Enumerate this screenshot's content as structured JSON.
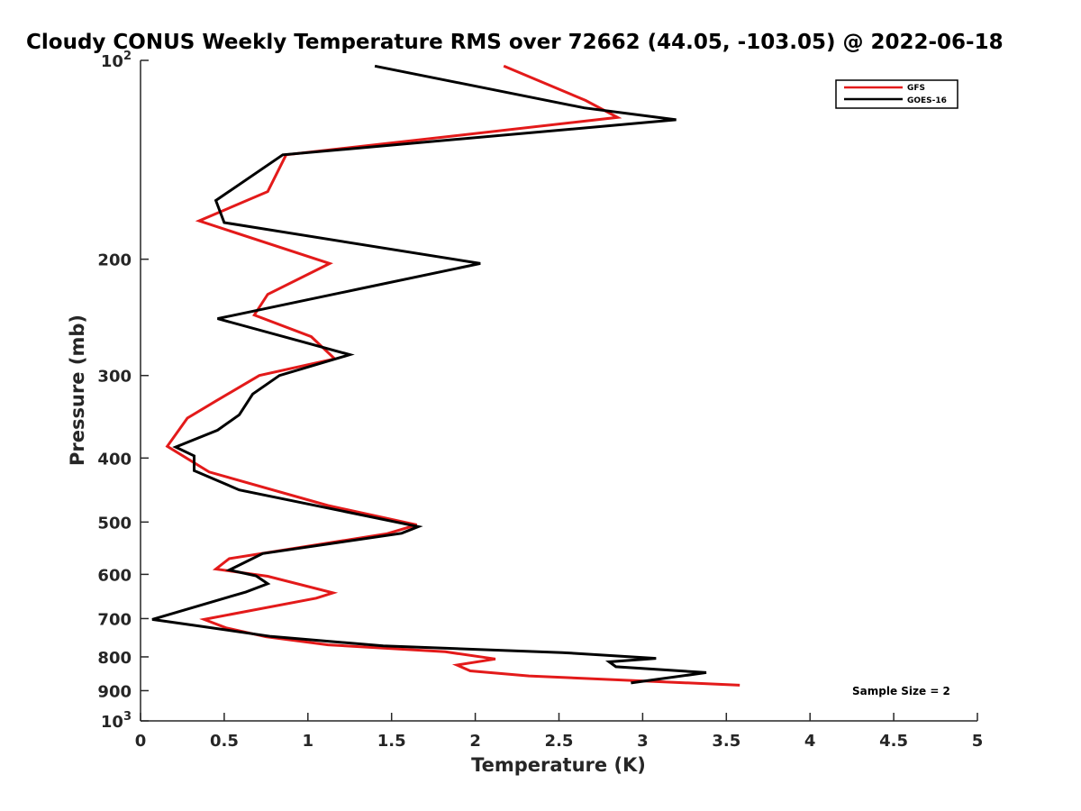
{
  "chart_data": {
    "type": "line",
    "title": "Cloudy CONUS Weekly Temperature RMS over 72662 (44.05, -103.05) @ 2022-06-18",
    "xlabel": "Temperature (K)",
    "ylabel": "Pressure (mb)",
    "xlim": [
      0,
      5
    ],
    "ylim": [
      100,
      1000
    ],
    "yscale": "log",
    "y_reversed": true,
    "grid": false,
    "legend_position": "top-right",
    "x_ticks": [
      "0",
      "0.5",
      "1",
      "1.5",
      "2",
      "2.5",
      "3",
      "3.5",
      "4",
      "4.5",
      "5"
    ],
    "x_tick_values": [
      0,
      0.5,
      1,
      1.5,
      2,
      2.5,
      3,
      3.5,
      4,
      4.5,
      5
    ],
    "y_ticks": [
      {
        "value": 100,
        "base": "10",
        "exp": "2"
      },
      {
        "value": 200,
        "label": "200"
      },
      {
        "value": 300,
        "label": "300"
      },
      {
        "value": 400,
        "label": "400"
      },
      {
        "value": 500,
        "label": "500"
      },
      {
        "value": 600,
        "label": "600"
      },
      {
        "value": 700,
        "label": "700"
      },
      {
        "value": 800,
        "label": "800"
      },
      {
        "value": 900,
        "label": "900"
      },
      {
        "value": 1000,
        "base": "10",
        "exp": "3"
      }
    ],
    "annotation": "Sample Size = 2",
    "series": [
      {
        "name": "GFS",
        "color": "#e31a1a",
        "x": [
          2.17,
          2.66,
          2.85,
          0.87,
          0.76,
          0.35,
          1.13,
          0.76,
          0.68,
          1.02,
          1.16,
          0.71,
          0.45,
          0.28,
          0.16,
          0.41,
          1.12,
          1.65,
          1.47,
          0.53,
          0.45,
          0.76,
          1.15,
          1.05,
          0.38,
          0.51,
          0.75,
          1.12,
          1.82,
          2.12,
          1.89,
          1.97,
          2.32,
          3.58
        ],
        "y": [
          102,
          115,
          122,
          139,
          158,
          175,
          203,
          226,
          243,
          262,
          283,
          300,
          328,
          348,
          384,
          420,
          472,
          505,
          521,
          568,
          589,
          604,
          640,
          652,
          702,
          723,
          746,
          767,
          786,
          806,
          823,
          840,
          855,
          883
        ]
      },
      {
        "name": "GOES-16",
        "color": "#000000",
        "x": [
          1.4,
          2.65,
          3.2,
          0.85,
          0.45,
          0.5,
          2.03,
          1.3,
          0.46,
          1.25,
          0.83,
          0.67,
          0.59,
          0.46,
          0.21,
          0.32,
          0.32,
          0.59,
          1.66,
          1.56,
          0.73,
          0.53,
          0.69,
          0.76,
          0.63,
          0.07,
          0.36,
          0.78,
          1.45,
          2.52,
          3.08,
          2.8,
          2.84,
          3.38,
          2.93
        ],
        "y": [
          102,
          118,
          123,
          139,
          163,
          176,
          203,
          222,
          246,
          279,
          300,
          320,
          344,
          363,
          385,
          397,
          418,
          447,
          508,
          520,
          558,
          591,
          603,
          620,
          638,
          702,
          719,
          745,
          770,
          788,
          804,
          814,
          828,
          845,
          876
        ]
      }
    ]
  }
}
